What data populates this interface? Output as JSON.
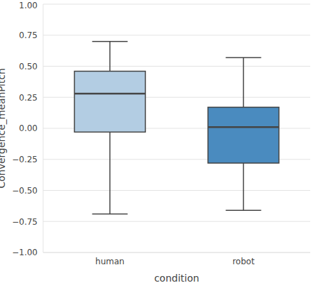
{
  "chart_data": {
    "type": "box",
    "categories": [
      "human",
      "robot"
    ],
    "boxes": [
      {
        "min": -0.69,
        "q1": -0.03,
        "median": 0.28,
        "q3": 0.46,
        "max": 0.7
      },
      {
        "min": -0.66,
        "q1": -0.28,
        "median": 0.01,
        "q3": 0.17,
        "max": 0.57
      }
    ],
    "colors": [
      "#b3cde3",
      "#4a8bbf"
    ],
    "xlabel": "condition",
    "ylabel": "Convergence_meanPitch",
    "ylim": [
      -1,
      1
    ],
    "yticks": [
      {
        "value": -1,
        "label": "−1.00"
      },
      {
        "value": -0.75,
        "label": "−0.75"
      },
      {
        "value": -0.5,
        "label": "−0.50"
      },
      {
        "value": -0.25,
        "label": "−0.25"
      },
      {
        "value": 0,
        "label": "0.00"
      },
      0.25,
      {
        "value": 0.5,
        "label": "0.50"
      },
      0.75,
      {
        "value": 1,
        "label": "1.00"
      }
    ],
    "grid": true
  }
}
